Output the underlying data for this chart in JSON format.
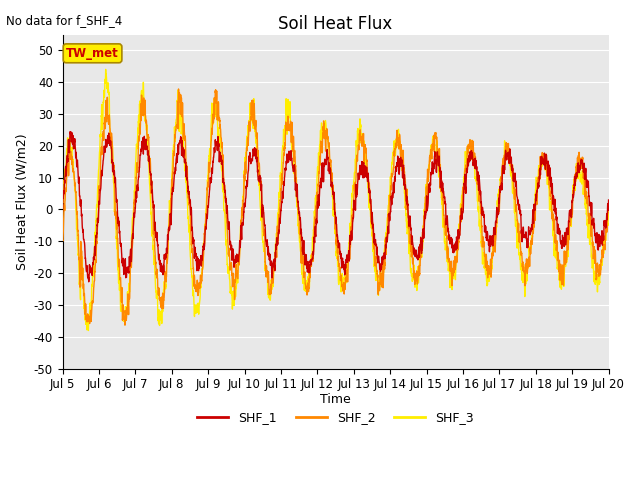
{
  "title": "Soil Heat Flux",
  "subtitle": "No data for f_SHF_4",
  "ylabel": "Soil Heat Flux (W/m2)",
  "xlabel": "Time",
  "ylim": [
    -50,
    55
  ],
  "xlim": [
    5,
    20
  ],
  "xtick_labels": [
    "Jul 5",
    "Jul 6",
    "Jul 7",
    "Jul 8",
    "Jul 9",
    "Jul 10",
    "Jul 11",
    "Jul 12",
    "Jul 13",
    "Jul 14",
    "Jul 15",
    "Jul 16",
    "Jul 17",
    "Jul 18",
    "Jul 19",
    "Jul 20"
  ],
  "xtick_positions": [
    5,
    6,
    7,
    8,
    9,
    10,
    11,
    12,
    13,
    14,
    15,
    16,
    17,
    18,
    19,
    20
  ],
  "ytick_labels": [
    "-50",
    "-40",
    "-30",
    "-20",
    "-10",
    "0",
    "10",
    "20",
    "30",
    "40",
    "50"
  ],
  "ytick_positions": [
    -50,
    -40,
    -30,
    -20,
    -10,
    0,
    10,
    20,
    30,
    40,
    50
  ],
  "bg_color": "#e8e8e8",
  "fig_color": "#ffffff",
  "grid_color": "#ffffff",
  "shf1_color": "#cc0000",
  "shf2_color": "#ff8800",
  "shf3_color": "#ffee00",
  "annotation_box_color": "#ffee00",
  "annotation_box_edge": "#aa8800",
  "annotation_text": "TW_met",
  "annotation_text_color": "#cc0000",
  "legend_entries": [
    "SHF_1",
    "SHF_2",
    "SHF_3"
  ]
}
